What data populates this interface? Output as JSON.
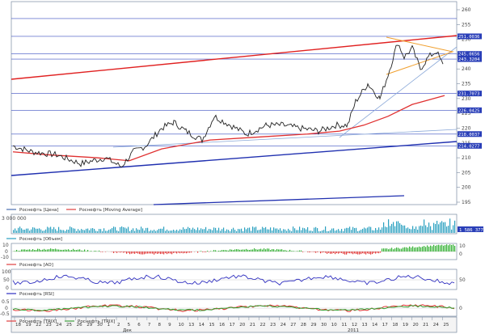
{
  "price_axis": {
    "ticks": [
      "260",
      "255",
      "250",
      "245",
      "240",
      "235",
      "230",
      "225",
      "220",
      "215",
      "210",
      "205",
      "200",
      "195"
    ]
  },
  "level_tags": [
    "251.0036",
    "245.0656",
    "243.3204",
    "231.7073",
    "226.0425",
    "218.0037",
    "214.0277"
  ],
  "legend_price": {
    "items": [
      "Роснефть [Цена]",
      "Роснефть [Moving Average]"
    ],
    "colors": [
      "#4a6fb0",
      "#e04040"
    ]
  },
  "volume": {
    "axis_top": "3 000 000",
    "value_tag": "1 586 377",
    "legend": "Роснефть [Объем]",
    "color": "#2aa0c0"
  },
  "ao": {
    "axis_top": "10",
    "axis_zero": "0",
    "axis_bottom": "-10",
    "axis_right_top": "10",
    "axis_right_bottom": "0",
    "legend": "Роснефть [AO]"
  },
  "rsi": {
    "axis": [
      "100",
      "50",
      "0"
    ],
    "axis_right": "50",
    "legend": "Роснефть [RSI]"
  },
  "trix": {
    "axis": [
      "0.5",
      "0",
      "-0.5"
    ],
    "axis_right": "0",
    "legends": [
      "Роснефть [TRIX]",
      "Роснефть [TRIX]"
    ],
    "colors": [
      "#e04040",
      "#40a040"
    ]
  },
  "date_axis": {
    "days": [
      "18",
      "19",
      "22",
      "23",
      "24",
      "25",
      "26",
      "29",
      "30",
      "1",
      "2",
      "5",
      "6",
      "7",
      "8",
      "9",
      "10",
      "13",
      "14",
      "15",
      "16",
      "17",
      "20",
      "21",
      "22",
      "23",
      "24",
      "27",
      "28",
      "29",
      "30",
      "10",
      "11",
      "12",
      "13",
      "14",
      "17",
      "18",
      "19",
      "20",
      "21",
      "24",
      "25"
    ],
    "months": [
      "Дек",
      "2011"
    ]
  }
}
